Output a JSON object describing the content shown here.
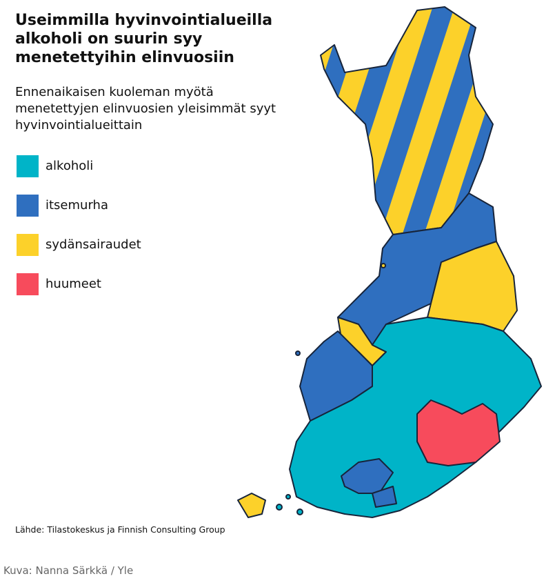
{
  "header": {
    "title": "Useimmilla hyvinvointialueilla alkoholi on suurin syy menetettyihin elinvuosiin",
    "subtitle": "Ennenaikaisen kuoleman myötä menetettyjen elinvuosien yleisimmät syyt hyvinvointialueittain"
  },
  "legend": {
    "items": [
      {
        "label": "alkoholi",
        "color": "#00b4c8"
      },
      {
        "label": "itsemurha",
        "color": "#2f6fbf"
      },
      {
        "label": "sydänsairaudet",
        "color": "#fcd12a"
      },
      {
        "label": "huumeet",
        "color": "#f74b5c"
      }
    ]
  },
  "source": "Lähde: Tilastokeskus ja Finnish Consulting Group",
  "credit": "Kuva: Nanna Särkkä / Yle"
}
